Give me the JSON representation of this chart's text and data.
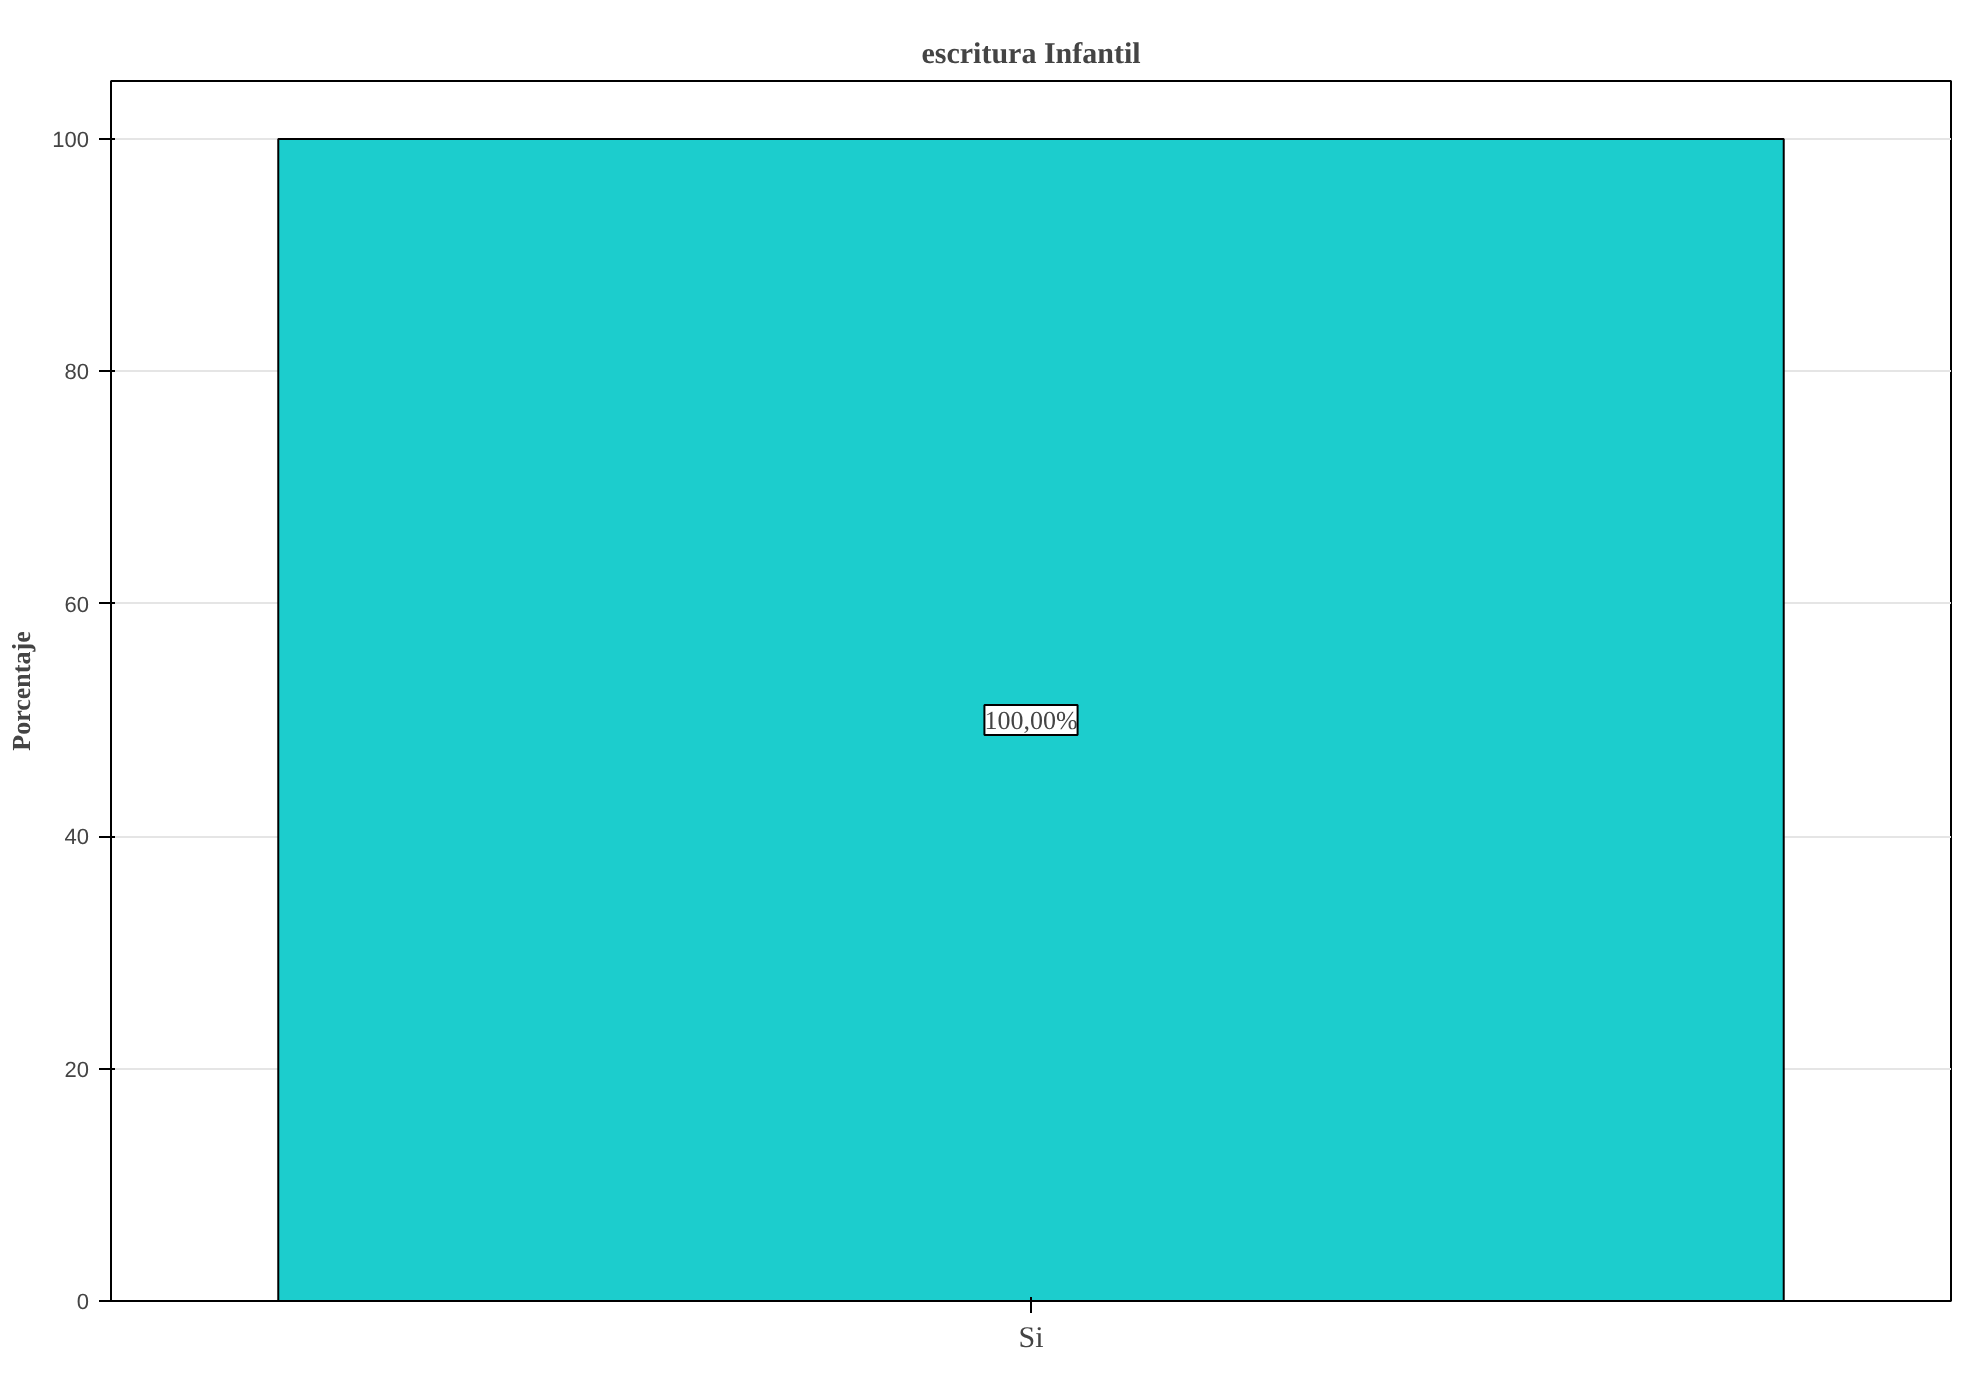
{
  "chart_data": {
    "type": "bar",
    "title": "escritura Infantil",
    "ylabel": "Porcentaje",
    "categories": [
      "Si"
    ],
    "values": [
      100
    ],
    "color": "#1ccdcd",
    "value_labels": [
      "100,00%"
    ],
    "ylim": [
      0,
      105
    ],
    "yticks": [
      0,
      20,
      40,
      60,
      80,
      100
    ],
    "grid": "y"
  }
}
